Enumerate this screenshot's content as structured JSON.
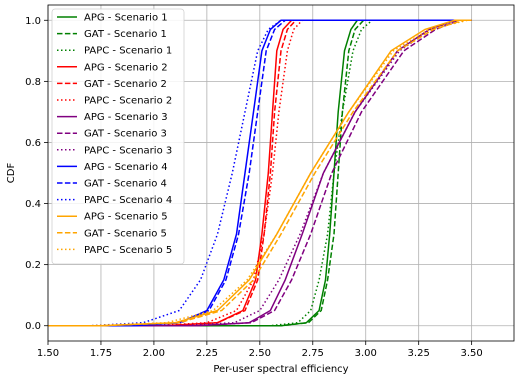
{
  "chart_data": {
    "type": "line",
    "xlabel": "Per-user spectral efficiency",
    "ylabel": "CDF",
    "xlim": [
      1.5,
      3.7
    ],
    "ylim": [
      -0.05,
      1.05
    ],
    "x_ticks": [
      "1.50",
      "1.75",
      "2.00",
      "2.25",
      "2.50",
      "2.75",
      "3.00",
      "3.25",
      "3.50"
    ],
    "y_ticks": [
      "0.0",
      "0.2",
      "0.4",
      "0.6",
      "0.8",
      "1.0"
    ],
    "grid": true,
    "legend_position": "upper-left",
    "colors": {
      "scenario_1": "#008000",
      "scenario_2": "#ff0000",
      "scenario_3": "#800080",
      "scenario_4": "#0000ff",
      "scenario_5": "#ffa500"
    },
    "series": [
      {
        "name": "APG - Scenario 1",
        "color": "#008000",
        "dash": "solid",
        "x": [
          1.5,
          2.6,
          2.72,
          2.78,
          2.81,
          2.83,
          2.85,
          2.87,
          2.9,
          2.93,
          2.96,
          3.5
        ],
        "y": [
          0.0,
          0.0,
          0.01,
          0.05,
          0.15,
          0.3,
          0.5,
          0.7,
          0.9,
          0.97,
          1.0,
          1.0
        ]
      },
      {
        "name": "GAT - Scenario 1",
        "color": "#008000",
        "dash": "dashed",
        "x": [
          1.5,
          2.6,
          2.73,
          2.79,
          2.82,
          2.85,
          2.87,
          2.89,
          2.92,
          2.95,
          2.99,
          3.5
        ],
        "y": [
          0.0,
          0.0,
          0.01,
          0.05,
          0.15,
          0.3,
          0.5,
          0.7,
          0.9,
          0.97,
          1.0,
          1.0
        ]
      },
      {
        "name": "PAPC - Scenario 1",
        "color": "#008000",
        "dash": "dotted",
        "x": [
          1.5,
          2.55,
          2.68,
          2.74,
          2.78,
          2.82,
          2.85,
          2.89,
          2.94,
          2.98,
          3.03,
          3.5
        ],
        "y": [
          0.0,
          0.0,
          0.01,
          0.05,
          0.15,
          0.3,
          0.5,
          0.7,
          0.9,
          0.97,
          1.0,
          1.0
        ]
      },
      {
        "name": "APG - Scenario 2",
        "color": "#ff0000",
        "dash": "solid",
        "x": [
          1.5,
          2.05,
          2.3,
          2.42,
          2.48,
          2.51,
          2.54,
          2.56,
          2.58,
          2.61,
          2.65,
          3.5
        ],
        "y": [
          0.0,
          0.0,
          0.01,
          0.05,
          0.15,
          0.3,
          0.5,
          0.7,
          0.9,
          0.97,
          1.0,
          1.0
        ]
      },
      {
        "name": "GAT - Scenario 2",
        "color": "#ff0000",
        "dash": "dashed",
        "x": [
          1.5,
          2.05,
          2.3,
          2.43,
          2.49,
          2.52,
          2.55,
          2.57,
          2.6,
          2.63,
          2.67,
          3.5
        ],
        "y": [
          0.0,
          0.0,
          0.01,
          0.05,
          0.15,
          0.3,
          0.5,
          0.7,
          0.9,
          0.97,
          1.0,
          1.0
        ]
      },
      {
        "name": "PAPC - Scenario 2",
        "color": "#ff0000",
        "dash": "dotted",
        "x": [
          1.5,
          2.0,
          2.25,
          2.39,
          2.47,
          2.52,
          2.56,
          2.59,
          2.63,
          2.66,
          2.7,
          3.5
        ],
        "y": [
          0.0,
          0.0,
          0.01,
          0.05,
          0.15,
          0.3,
          0.5,
          0.7,
          0.9,
          0.97,
          1.0,
          1.0
        ]
      },
      {
        "name": "APG - Scenario 3",
        "color": "#800080",
        "dash": "solid",
        "x": [
          1.5,
          2.2,
          2.45,
          2.55,
          2.62,
          2.7,
          2.8,
          2.95,
          3.15,
          3.3,
          3.42,
          3.5
        ],
        "y": [
          0.0,
          0.0,
          0.01,
          0.05,
          0.15,
          0.3,
          0.5,
          0.7,
          0.9,
          0.97,
          1.0,
          1.0
        ]
      },
      {
        "name": "GAT - Scenario 3",
        "color": "#800080",
        "dash": "dashed",
        "x": [
          1.5,
          2.2,
          2.46,
          2.57,
          2.65,
          2.74,
          2.84,
          2.98,
          3.18,
          3.33,
          3.44,
          3.5
        ],
        "y": [
          0.0,
          0.0,
          0.01,
          0.05,
          0.15,
          0.3,
          0.5,
          0.7,
          0.9,
          0.97,
          1.0,
          1.0
        ]
      },
      {
        "name": "PAPC - Scenario 3",
        "color": "#800080",
        "dash": "dotted",
        "x": [
          1.5,
          2.1,
          2.38,
          2.5,
          2.59,
          2.69,
          2.8,
          2.95,
          3.16,
          3.31,
          3.43,
          3.5
        ],
        "y": [
          0.0,
          0.0,
          0.01,
          0.05,
          0.15,
          0.3,
          0.5,
          0.7,
          0.9,
          0.97,
          1.0,
          1.0
        ]
      },
      {
        "name": "APG - Scenario 4",
        "color": "#0000ff",
        "dash": "solid",
        "x": [
          1.5,
          1.9,
          2.12,
          2.25,
          2.33,
          2.39,
          2.43,
          2.47,
          2.51,
          2.55,
          2.6,
          3.5
        ],
        "y": [
          0.0,
          0.0,
          0.01,
          0.05,
          0.15,
          0.3,
          0.5,
          0.7,
          0.9,
          0.97,
          1.0,
          1.0
        ]
      },
      {
        "name": "GAT - Scenario 4",
        "color": "#0000ff",
        "dash": "dashed",
        "x": [
          1.5,
          1.9,
          2.13,
          2.26,
          2.34,
          2.4,
          2.45,
          2.49,
          2.53,
          2.57,
          2.62,
          3.5
        ],
        "y": [
          0.0,
          0.0,
          0.01,
          0.05,
          0.15,
          0.3,
          0.5,
          0.7,
          0.9,
          0.97,
          1.0,
          1.0
        ]
      },
      {
        "name": "PAPC - Scenario 4",
        "color": "#0000ff",
        "dash": "dotted",
        "x": [
          1.5,
          1.7,
          1.95,
          2.12,
          2.22,
          2.3,
          2.37,
          2.43,
          2.49,
          2.54,
          2.6,
          3.5
        ],
        "y": [
          0.0,
          0.0,
          0.01,
          0.05,
          0.15,
          0.3,
          0.5,
          0.7,
          0.9,
          0.97,
          1.0,
          1.0
        ]
      },
      {
        "name": "APG - Scenario 5",
        "color": "#ffa500",
        "dash": "solid",
        "x": [
          1.5,
          1.75,
          2.1,
          2.3,
          2.45,
          2.58,
          2.74,
          2.92,
          3.12,
          3.28,
          3.42,
          3.5
        ],
        "y": [
          0.0,
          0.0,
          0.01,
          0.05,
          0.15,
          0.3,
          0.5,
          0.7,
          0.9,
          0.97,
          1.0,
          1.0
        ]
      },
      {
        "name": "GAT - Scenario 5",
        "color": "#ffa500",
        "dash": "dashed",
        "x": [
          1.5,
          1.75,
          2.12,
          2.32,
          2.47,
          2.6,
          2.76,
          2.94,
          3.15,
          3.32,
          3.46,
          3.5
        ],
        "y": [
          0.0,
          0.0,
          0.01,
          0.05,
          0.15,
          0.3,
          0.5,
          0.7,
          0.9,
          0.97,
          1.0,
          1.0
        ]
      },
      {
        "name": "PAPC - Scenario 5",
        "color": "#ffa500",
        "dash": "dotted",
        "x": [
          1.5,
          1.7,
          2.06,
          2.28,
          2.44,
          2.58,
          2.74,
          2.92,
          3.13,
          3.3,
          3.48,
          3.5
        ],
        "y": [
          0.0,
          0.0,
          0.01,
          0.05,
          0.15,
          0.3,
          0.5,
          0.7,
          0.9,
          0.97,
          1.0,
          1.0
        ]
      }
    ]
  }
}
